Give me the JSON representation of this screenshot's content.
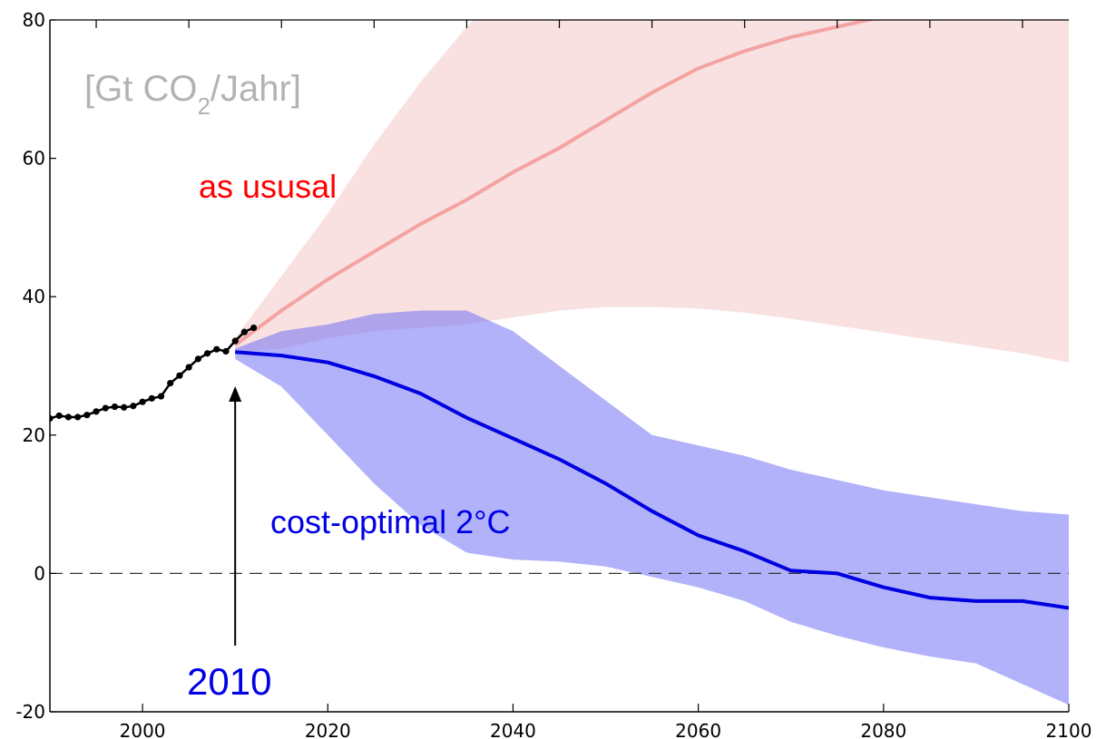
{
  "chart_data": {
    "type": "area",
    "unit_label": "[Gt CO2/Jahr]",
    "unit_parts": {
      "pre": "[Gt CO",
      "sub": "2",
      "post": "/Jahr]"
    },
    "xlim": [
      1990,
      2100
    ],
    "ylim": [
      -20,
      80
    ],
    "x_ticks": [
      2000,
      2020,
      2040,
      2060,
      2080,
      2100
    ],
    "y_ticks": [
      -20,
      0,
      20,
      40,
      60,
      80
    ],
    "x_tick_labels": [
      "2000",
      "2020",
      "2040",
      "2060",
      "2080",
      "2100"
    ],
    "y_tick_labels": [
      "-20",
      "0",
      "20",
      "40",
      "60",
      "80"
    ],
    "zero_line": "dashed",
    "historical": {
      "x": [
        1990,
        1991,
        1992,
        1993,
        1994,
        1995,
        1996,
        1997,
        1998,
        1999,
        2000,
        2001,
        2002,
        2003,
        2004,
        2005,
        2006,
        2007,
        2008,
        2009,
        2010,
        2011,
        2012
      ],
      "y": [
        22.4,
        22.8,
        22.6,
        22.6,
        22.9,
        23.4,
        23.9,
        24.1,
        24.0,
        24.2,
        24.8,
        25.3,
        25.6,
        27.5,
        28.6,
        29.8,
        31.0,
        31.8,
        32.4,
        32.1,
        33.6,
        34.9,
        35.5
      ],
      "color": "#000000"
    },
    "series": [
      {
        "key": "business_as_usual",
        "label": "as ususal",
        "line_color": "#f4a3a3",
        "band_color": "#f9e1e1",
        "x": [
          2010,
          2015,
          2020,
          2025,
          2030,
          2035,
          2040,
          2045,
          2050,
          2055,
          2060,
          2065,
          2070,
          2075,
          2080,
          2085,
          2090
        ],
        "y": [
          33,
          38,
          42.5,
          46.5,
          50.5,
          54,
          58,
          61.5,
          65.5,
          69.5,
          73,
          75.5,
          77.5,
          79,
          80.5,
          81.2,
          81.5
        ],
        "band_x": [
          2010,
          2015,
          2020,
          2025,
          2030,
          2035,
          2040,
          2045,
          2050,
          2055,
          2060,
          2065,
          2070,
          2075,
          2080,
          2085,
          2090,
          2095,
          2100
        ],
        "band_upper": [
          34,
          43,
          52,
          62,
          71,
          79,
          86,
          91,
          96,
          100,
          104,
          108,
          111,
          114,
          116,
          118,
          120,
          121,
          122
        ],
        "band_lower": [
          32,
          32.5,
          34,
          35,
          35.5,
          36,
          37,
          38,
          38.5,
          38.5,
          38.3,
          37.7,
          36.8,
          35.8,
          34.8,
          33.8,
          32.8,
          31.8,
          30.5
        ]
      },
      {
        "key": "cost_optimal_2C",
        "label": "cost-optimal 2°C",
        "line_color": "#0000e0",
        "band_color": "#b3b3fb",
        "x": [
          2010,
          2015,
          2020,
          2025,
          2030,
          2035,
          2040,
          2045,
          2050,
          2055,
          2060,
          2065,
          2070,
          2075,
          2080,
          2085,
          2090,
          2095,
          2100
        ],
        "y": [
          32,
          31.5,
          30.5,
          28.5,
          26,
          22.5,
          19.5,
          16.5,
          13,
          9,
          5.5,
          3.2,
          0.4,
          0,
          -2,
          -3.5,
          -4,
          -4,
          -5
        ],
        "band_x": [
          2010,
          2015,
          2020,
          2025,
          2030,
          2035,
          2040,
          2045,
          2050,
          2055,
          2060,
          2065,
          2070,
          2075,
          2080,
          2085,
          2090,
          2095,
          2100
        ],
        "band_upper": [
          32.5,
          35,
          36,
          37.5,
          38,
          38,
          35,
          30,
          25,
          20,
          18.5,
          17,
          15,
          13.5,
          12,
          11,
          10,
          9,
          8.5
        ],
        "band_lower": [
          31,
          27,
          20,
          13,
          7,
          3,
          2,
          1.7,
          1,
          -0.5,
          -2,
          -4,
          -7,
          -9,
          -10.7,
          -12,
          -13,
          -16,
          -19
        ]
      }
    ],
    "annotations": {
      "bau_label": "as ususal",
      "opt_label": "cost-optimal 2°C",
      "year_label": "2010",
      "year_arrow_x": 2010
    }
  }
}
